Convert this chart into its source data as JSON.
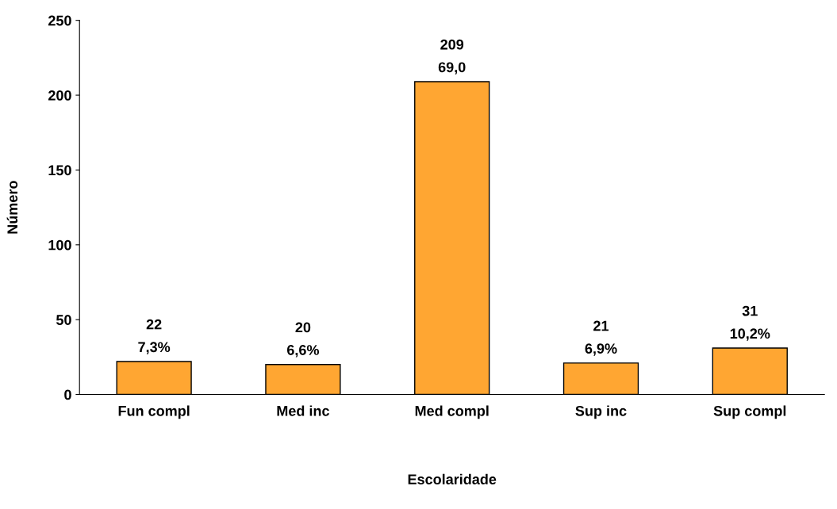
{
  "chart_data": {
    "type": "bar",
    "xlabel": "Escolaridade",
    "ylabel": "Número",
    "categories": [
      "Fun compl",
      "Med inc",
      "Med compl",
      "Sup inc",
      "Sup compl"
    ],
    "values": [
      22,
      20,
      209,
      21,
      31
    ],
    "value_labels": [
      "22\n7,3%",
      "20\n6,6%",
      "209\n69,0",
      "21\n6,9%",
      "31\n10,2%"
    ],
    "color": "#ffa632",
    "ylim": [
      0,
      250
    ],
    "yticks": [
      0,
      50,
      100,
      150,
      200,
      250
    ],
    "grid": false
  }
}
